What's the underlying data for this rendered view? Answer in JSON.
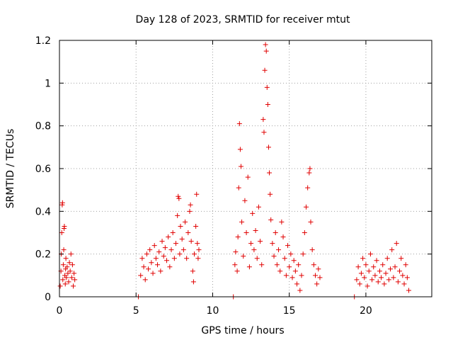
{
  "chart_data": {
    "type": "scatter",
    "title": "Day 128 of 2023, SRMTID for receiver mtut",
    "xlabel": "GPS time / hours",
    "ylabel": "SRMTID / TECUs",
    "xlim": [
      0,
      24.3
    ],
    "ylim": [
      0,
      1.2
    ],
    "xticks": [
      0,
      5,
      10,
      15,
      20
    ],
    "yticks": [
      0,
      0.2,
      0.4,
      0.6,
      0.8,
      1,
      1.2
    ],
    "ytick_labels": [
      "0",
      "0.2",
      "0.4",
      "0.6",
      "0.8",
      "1",
      "1.2"
    ],
    "grid": true,
    "marker": "+",
    "colors": {
      "series": "#e00000",
      "grid": "#a0a0a0",
      "axis": "#000000"
    },
    "series": [
      {
        "name": "SRMTID",
        "points": [
          [
            0.05,
            0.05
          ],
          [
            0.1,
            0.12
          ],
          [
            0.12,
            0.2
          ],
          [
            0.15,
            0.3
          ],
          [
            0.18,
            0.43
          ],
          [
            0.2,
            0.44
          ],
          [
            0.22,
            0.08
          ],
          [
            0.25,
            0.15
          ],
          [
            0.28,
            0.22
          ],
          [
            0.3,
            0.32
          ],
          [
            0.32,
            0.33
          ],
          [
            0.35,
            0.1
          ],
          [
            0.38,
            0.06
          ],
          [
            0.4,
            0.13
          ],
          [
            0.42,
            0.18
          ],
          [
            0.45,
            0.09
          ],
          [
            0.5,
            0.14
          ],
          [
            0.55,
            0.11
          ],
          [
            0.6,
            0.07
          ],
          [
            0.65,
            0.16
          ],
          [
            0.7,
            0.12
          ],
          [
            0.75,
            0.2
          ],
          [
            0.8,
            0.09
          ],
          [
            0.85,
            0.15
          ],
          [
            0.9,
            0.05
          ],
          [
            0.95,
            0.11
          ],
          [
            1.0,
            0.08
          ],
          [
            5.15,
            0.0
          ],
          [
            5.3,
            0.1
          ],
          [
            5.4,
            0.18
          ],
          [
            5.5,
            0.14
          ],
          [
            5.6,
            0.08
          ],
          [
            5.7,
            0.2
          ],
          [
            5.8,
            0.13
          ],
          [
            5.9,
            0.22
          ],
          [
            6.0,
            0.16
          ],
          [
            6.1,
            0.11
          ],
          [
            6.2,
            0.24
          ],
          [
            6.3,
            0.18
          ],
          [
            6.4,
            0.15
          ],
          [
            6.5,
            0.21
          ],
          [
            6.6,
            0.12
          ],
          [
            6.7,
            0.26
          ],
          [
            6.8,
            0.19
          ],
          [
            6.9,
            0.23
          ],
          [
            7.0,
            0.17
          ],
          [
            7.1,
            0.28
          ],
          [
            7.2,
            0.14
          ],
          [
            7.3,
            0.22
          ],
          [
            7.4,
            0.3
          ],
          [
            7.5,
            0.18
          ],
          [
            7.6,
            0.25
          ],
          [
            7.7,
            0.38
          ],
          [
            7.75,
            0.47
          ],
          [
            7.8,
            0.46
          ],
          [
            7.85,
            0.2
          ],
          [
            7.9,
            0.33
          ],
          [
            8.0,
            0.27
          ],
          [
            8.1,
            0.22
          ],
          [
            8.2,
            0.35
          ],
          [
            8.3,
            0.18
          ],
          [
            8.4,
            0.3
          ],
          [
            8.5,
            0.4
          ],
          [
            8.55,
            0.43
          ],
          [
            8.6,
            0.26
          ],
          [
            8.7,
            0.12
          ],
          [
            8.75,
            0.07
          ],
          [
            8.8,
            0.2
          ],
          [
            8.9,
            0.33
          ],
          [
            8.95,
            0.48
          ],
          [
            9.0,
            0.25
          ],
          [
            9.05,
            0.18
          ],
          [
            9.1,
            0.22
          ],
          [
            11.35,
            0.0
          ],
          [
            11.45,
            0.15
          ],
          [
            11.5,
            0.21
          ],
          [
            11.6,
            0.12
          ],
          [
            11.65,
            0.28
          ],
          [
            11.7,
            0.51
          ],
          [
            11.75,
            0.81
          ],
          [
            11.8,
            0.69
          ],
          [
            11.85,
            0.61
          ],
          [
            11.9,
            0.35
          ],
          [
            12.0,
            0.19
          ],
          [
            12.1,
            0.45
          ],
          [
            12.2,
            0.3
          ],
          [
            12.3,
            0.56
          ],
          [
            12.4,
            0.14
          ],
          [
            12.5,
            0.25
          ],
          [
            12.6,
            0.39
          ],
          [
            12.7,
            0.22
          ],
          [
            12.8,
            0.31
          ],
          [
            12.9,
            0.18
          ],
          [
            13.0,
            0.42
          ],
          [
            13.1,
            0.26
          ],
          [
            13.2,
            0.15
          ],
          [
            13.3,
            0.83
          ],
          [
            13.35,
            0.77
          ],
          [
            13.4,
            1.06
          ],
          [
            13.45,
            1.18
          ],
          [
            13.5,
            1.15
          ],
          [
            13.55,
            0.98
          ],
          [
            13.6,
            0.9
          ],
          [
            13.65,
            0.7
          ],
          [
            13.7,
            0.58
          ],
          [
            13.75,
            0.48
          ],
          [
            13.8,
            0.36
          ],
          [
            13.9,
            0.25
          ],
          [
            14.0,
            0.19
          ],
          [
            14.1,
            0.3
          ],
          [
            14.2,
            0.15
          ],
          [
            14.3,
            0.22
          ],
          [
            14.4,
            0.12
          ],
          [
            14.5,
            0.35
          ],
          [
            14.6,
            0.28
          ],
          [
            14.7,
            0.18
          ],
          [
            14.8,
            0.1
          ],
          [
            14.9,
            0.24
          ],
          [
            15.0,
            0.14
          ],
          [
            15.1,
            0.2
          ],
          [
            15.2,
            0.09
          ],
          [
            15.3,
            0.17
          ],
          [
            15.4,
            0.12
          ],
          [
            15.5,
            0.06
          ],
          [
            15.6,
            0.15
          ],
          [
            15.7,
            0.03
          ],
          [
            15.8,
            0.1
          ],
          [
            15.9,
            0.2
          ],
          [
            16.0,
            0.3
          ],
          [
            16.1,
            0.42
          ],
          [
            16.2,
            0.51
          ],
          [
            16.3,
            0.58
          ],
          [
            16.35,
            0.6
          ],
          [
            16.4,
            0.35
          ],
          [
            16.5,
            0.22
          ],
          [
            16.6,
            0.15
          ],
          [
            16.7,
            0.1
          ],
          [
            16.8,
            0.06
          ],
          [
            16.9,
            0.13
          ],
          [
            17.0,
            0.09
          ],
          [
            19.25,
            0.0
          ],
          [
            19.4,
            0.08
          ],
          [
            19.5,
            0.14
          ],
          [
            19.6,
            0.06
          ],
          [
            19.7,
            0.11
          ],
          [
            19.8,
            0.18
          ],
          [
            19.9,
            0.09
          ],
          [
            20.0,
            0.15
          ],
          [
            20.1,
            0.05
          ],
          [
            20.2,
            0.12
          ],
          [
            20.3,
            0.2
          ],
          [
            20.4,
            0.08
          ],
          [
            20.5,
            0.14
          ],
          [
            20.6,
            0.1
          ],
          [
            20.7,
            0.17
          ],
          [
            20.8,
            0.07
          ],
          [
            20.9,
            0.12
          ],
          [
            21.0,
            0.09
          ],
          [
            21.1,
            0.15
          ],
          [
            21.2,
            0.06
          ],
          [
            21.3,
            0.11
          ],
          [
            21.4,
            0.18
          ],
          [
            21.5,
            0.08
          ],
          [
            21.6,
            0.13
          ],
          [
            21.7,
            0.22
          ],
          [
            21.8,
            0.09
          ],
          [
            21.9,
            0.14
          ],
          [
            22.0,
            0.25
          ],
          [
            22.1,
            0.07
          ],
          [
            22.2,
            0.12
          ],
          [
            22.3,
            0.18
          ],
          [
            22.4,
            0.1
          ],
          [
            22.5,
            0.06
          ],
          [
            22.6,
            0.15
          ],
          [
            22.7,
            0.09
          ],
          [
            22.8,
            0.03
          ]
        ]
      }
    ]
  }
}
